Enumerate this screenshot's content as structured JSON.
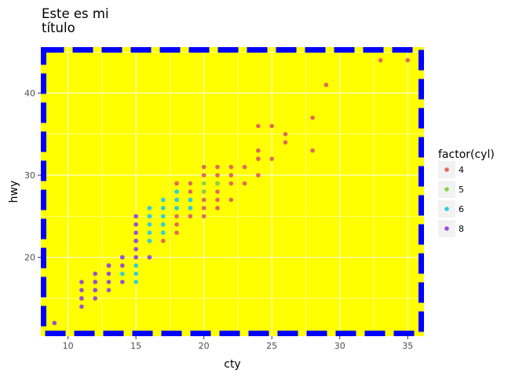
{
  "chart_data": {
    "type": "scatter",
    "title_lines": [
      "Este es mi",
      "título"
    ],
    "xlabel": "cty",
    "ylabel": "hwy",
    "xlim": [
      8.0,
      36.2
    ],
    "ylim": [
      10.4,
      45.6
    ],
    "x_ticks": [
      10,
      15,
      20,
      25,
      30,
      35
    ],
    "y_ticks": [
      20,
      30,
      40
    ],
    "grid": true,
    "background_color": "#ffff00",
    "border_color": "#0000ff",
    "legend": {
      "title": "factor(cyl)",
      "position": "right"
    },
    "series": [
      {
        "name": "4",
        "color": "#e16a5a",
        "points": [
          [
            18,
            29
          ],
          [
            21,
            29
          ],
          [
            20,
            31
          ],
          [
            21,
            30
          ],
          [
            18,
            26
          ],
          [
            18,
            29
          ],
          [
            18,
            27
          ],
          [
            19,
            26
          ],
          [
            20,
            28
          ],
          [
            21,
            31
          ],
          [
            19,
            27
          ],
          [
            21,
            29
          ],
          [
            19,
            25
          ],
          [
            23,
            29
          ],
          [
            23,
            31
          ],
          [
            22,
            29
          ],
          [
            24,
            32
          ],
          [
            24,
            33
          ],
          [
            24,
            32
          ],
          [
            28,
            37
          ],
          [
            25,
            32
          ],
          [
            29,
            41
          ],
          [
            26,
            35
          ],
          [
            26,
            34
          ],
          [
            24,
            36
          ],
          [
            25,
            36
          ],
          [
            35,
            44
          ],
          [
            33,
            44
          ],
          [
            28,
            33
          ],
          [
            24,
            30
          ],
          [
            20,
            27
          ],
          [
            21,
            26
          ],
          [
            20,
            25
          ],
          [
            22,
            31
          ],
          [
            21,
            28
          ],
          [
            22,
            30
          ],
          [
            20,
            26
          ],
          [
            19,
            29
          ],
          [
            17,
            22
          ],
          [
            18,
            25
          ],
          [
            19,
            28
          ],
          [
            22,
            27
          ],
          [
            20,
            30
          ],
          [
            20,
            28
          ],
          [
            18,
            23
          ],
          [
            21,
            27
          ],
          [
            18,
            24
          ],
          [
            21,
            26
          ],
          [
            19,
            25
          ]
        ]
      },
      {
        "name": "5",
        "color": "#8cd14a",
        "points": [
          [
            21,
            29
          ],
          [
            20,
            28
          ],
          [
            20,
            29
          ],
          [
            21,
            29
          ]
        ]
      },
      {
        "name": "6",
        "color": "#2fcfdb",
        "points": [
          [
            16,
            26
          ],
          [
            18,
            26
          ],
          [
            17,
            27
          ],
          [
            15,
            25
          ],
          [
            16,
            24
          ],
          [
            16,
            25
          ],
          [
            17,
            24
          ],
          [
            16,
            23
          ],
          [
            18,
            27
          ],
          [
            18,
            28
          ],
          [
            15,
            17
          ],
          [
            16,
            22
          ],
          [
            15,
            19
          ],
          [
            14,
            18
          ],
          [
            17,
            27
          ],
          [
            15,
            22
          ],
          [
            16,
            20
          ],
          [
            19,
            27
          ],
          [
            17,
            26
          ],
          [
            18,
            26
          ],
          [
            16,
            26
          ],
          [
            17,
            23
          ],
          [
            14,
            20
          ],
          [
            18,
            26
          ],
          [
            17,
            25
          ],
          [
            19,
            27
          ],
          [
            16,
            22
          ],
          [
            15,
            18
          ],
          [
            17,
            24
          ],
          [
            16,
            20
          ],
          [
            19,
            26
          ],
          [
            16,
            25
          ],
          [
            17,
            26
          ],
          [
            15,
            20
          ],
          [
            18,
            28
          ],
          [
            15,
            24
          ],
          [
            19,
            26
          ],
          [
            16,
            25
          ]
        ]
      },
      {
        "name": "8",
        "color": "#9b50d0",
        "points": [
          [
            15,
            25
          ],
          [
            15,
            24
          ],
          [
            14,
            20
          ],
          [
            11,
            15
          ],
          [
            11,
            14
          ],
          [
            12,
            17
          ],
          [
            15,
            23
          ],
          [
            16,
            20
          ],
          [
            15,
            21
          ],
          [
            14,
            20
          ],
          [
            12,
            15
          ],
          [
            12,
            17
          ],
          [
            13,
            19
          ],
          [
            15,
            22
          ],
          [
            13,
            17
          ],
          [
            11,
            17
          ],
          [
            12,
            18
          ],
          [
            9,
            12
          ],
          [
            11,
            16
          ],
          [
            14,
            19
          ],
          [
            13,
            18
          ],
          [
            12,
            16
          ],
          [
            13,
            16
          ],
          [
            14,
            17
          ],
          [
            15,
            22
          ],
          [
            11,
            15
          ],
          [
            12,
            16
          ],
          [
            13,
            19
          ],
          [
            15,
            20
          ]
        ]
      }
    ]
  }
}
